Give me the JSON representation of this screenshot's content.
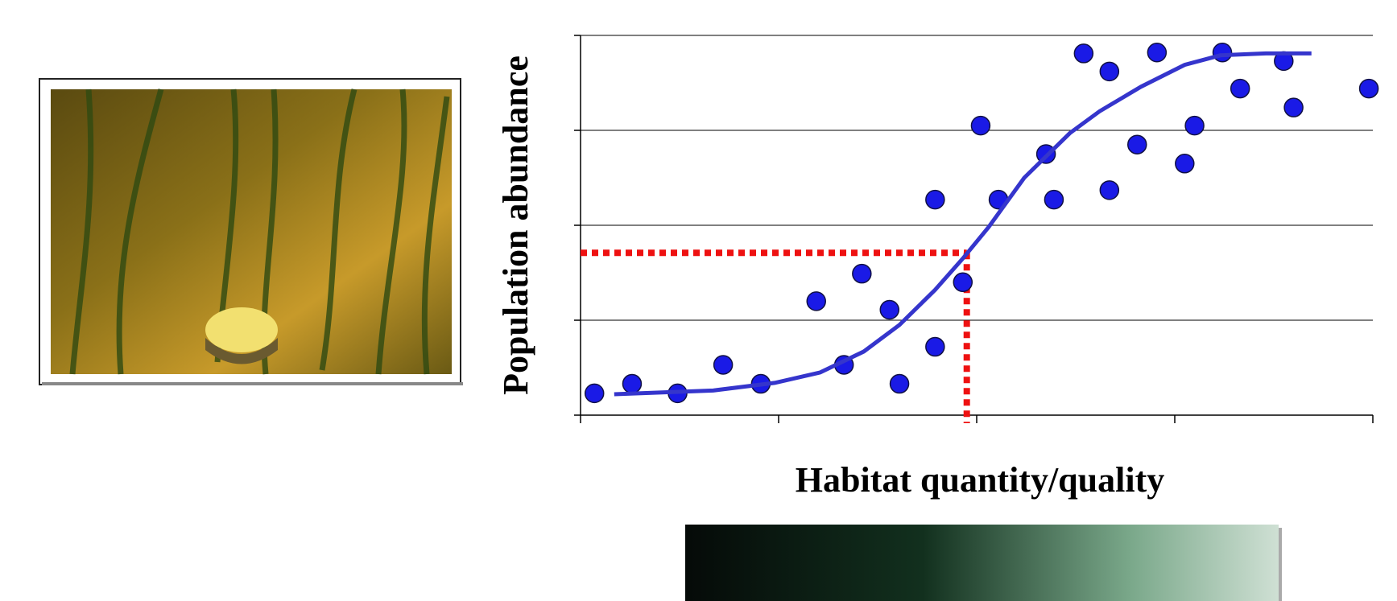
{
  "chart_data": {
    "type": "scatter",
    "y_label": "Population abundance",
    "x_label": "Habitat quantity/quality",
    "xlim": [
      0,
      4
    ],
    "xticks": [
      0,
      1,
      2,
      3,
      4
    ],
    "ylim": [
      0,
      4
    ],
    "yticks": [
      0,
      1,
      2,
      3,
      4
    ],
    "grid": true,
    "series": [
      {
        "type": "scatter",
        "color": "#1a1ae6",
        "x": [
          0.07,
          0.26,
          0.49,
          0.72,
          0.91,
          1.19,
          1.33,
          1.42,
          1.56,
          1.61,
          1.79,
          1.79,
          1.93,
          2.02,
          2.11,
          2.35,
          2.39,
          2.54,
          2.67,
          2.67,
          2.81,
          2.91,
          3.05,
          3.1,
          3.24,
          3.33,
          3.55,
          3.6,
          3.98
        ],
        "values": [
          0.23,
          0.33,
          0.23,
          0.53,
          0.33,
          1.2,
          0.53,
          1.49,
          1.11,
          0.33,
          0.72,
          2.27,
          1.4,
          3.05,
          2.27,
          2.75,
          2.27,
          3.81,
          3.62,
          2.37,
          2.85,
          3.82,
          2.65,
          3.05,
          3.82,
          3.44,
          3.73,
          3.24,
          3.44
        ]
      },
      {
        "type": "line",
        "color": "#3535cc",
        "x": [
          0.17,
          0.67,
          0.98,
          1.21,
          1.43,
          1.61,
          1.79,
          1.93,
          2.06,
          2.24,
          2.47,
          2.62,
          2.83,
          3.05,
          3.23,
          3.46,
          3.69
        ],
        "values": [
          0.22,
          0.26,
          0.34,
          0.45,
          0.67,
          0.95,
          1.32,
          1.65,
          1.98,
          2.5,
          2.97,
          3.2,
          3.46,
          3.69,
          3.79,
          3.81,
          3.81
        ]
      }
    ],
    "threshold": {
      "x": 1.95,
      "y": 1.71,
      "color": "#ee1111"
    }
  }
}
